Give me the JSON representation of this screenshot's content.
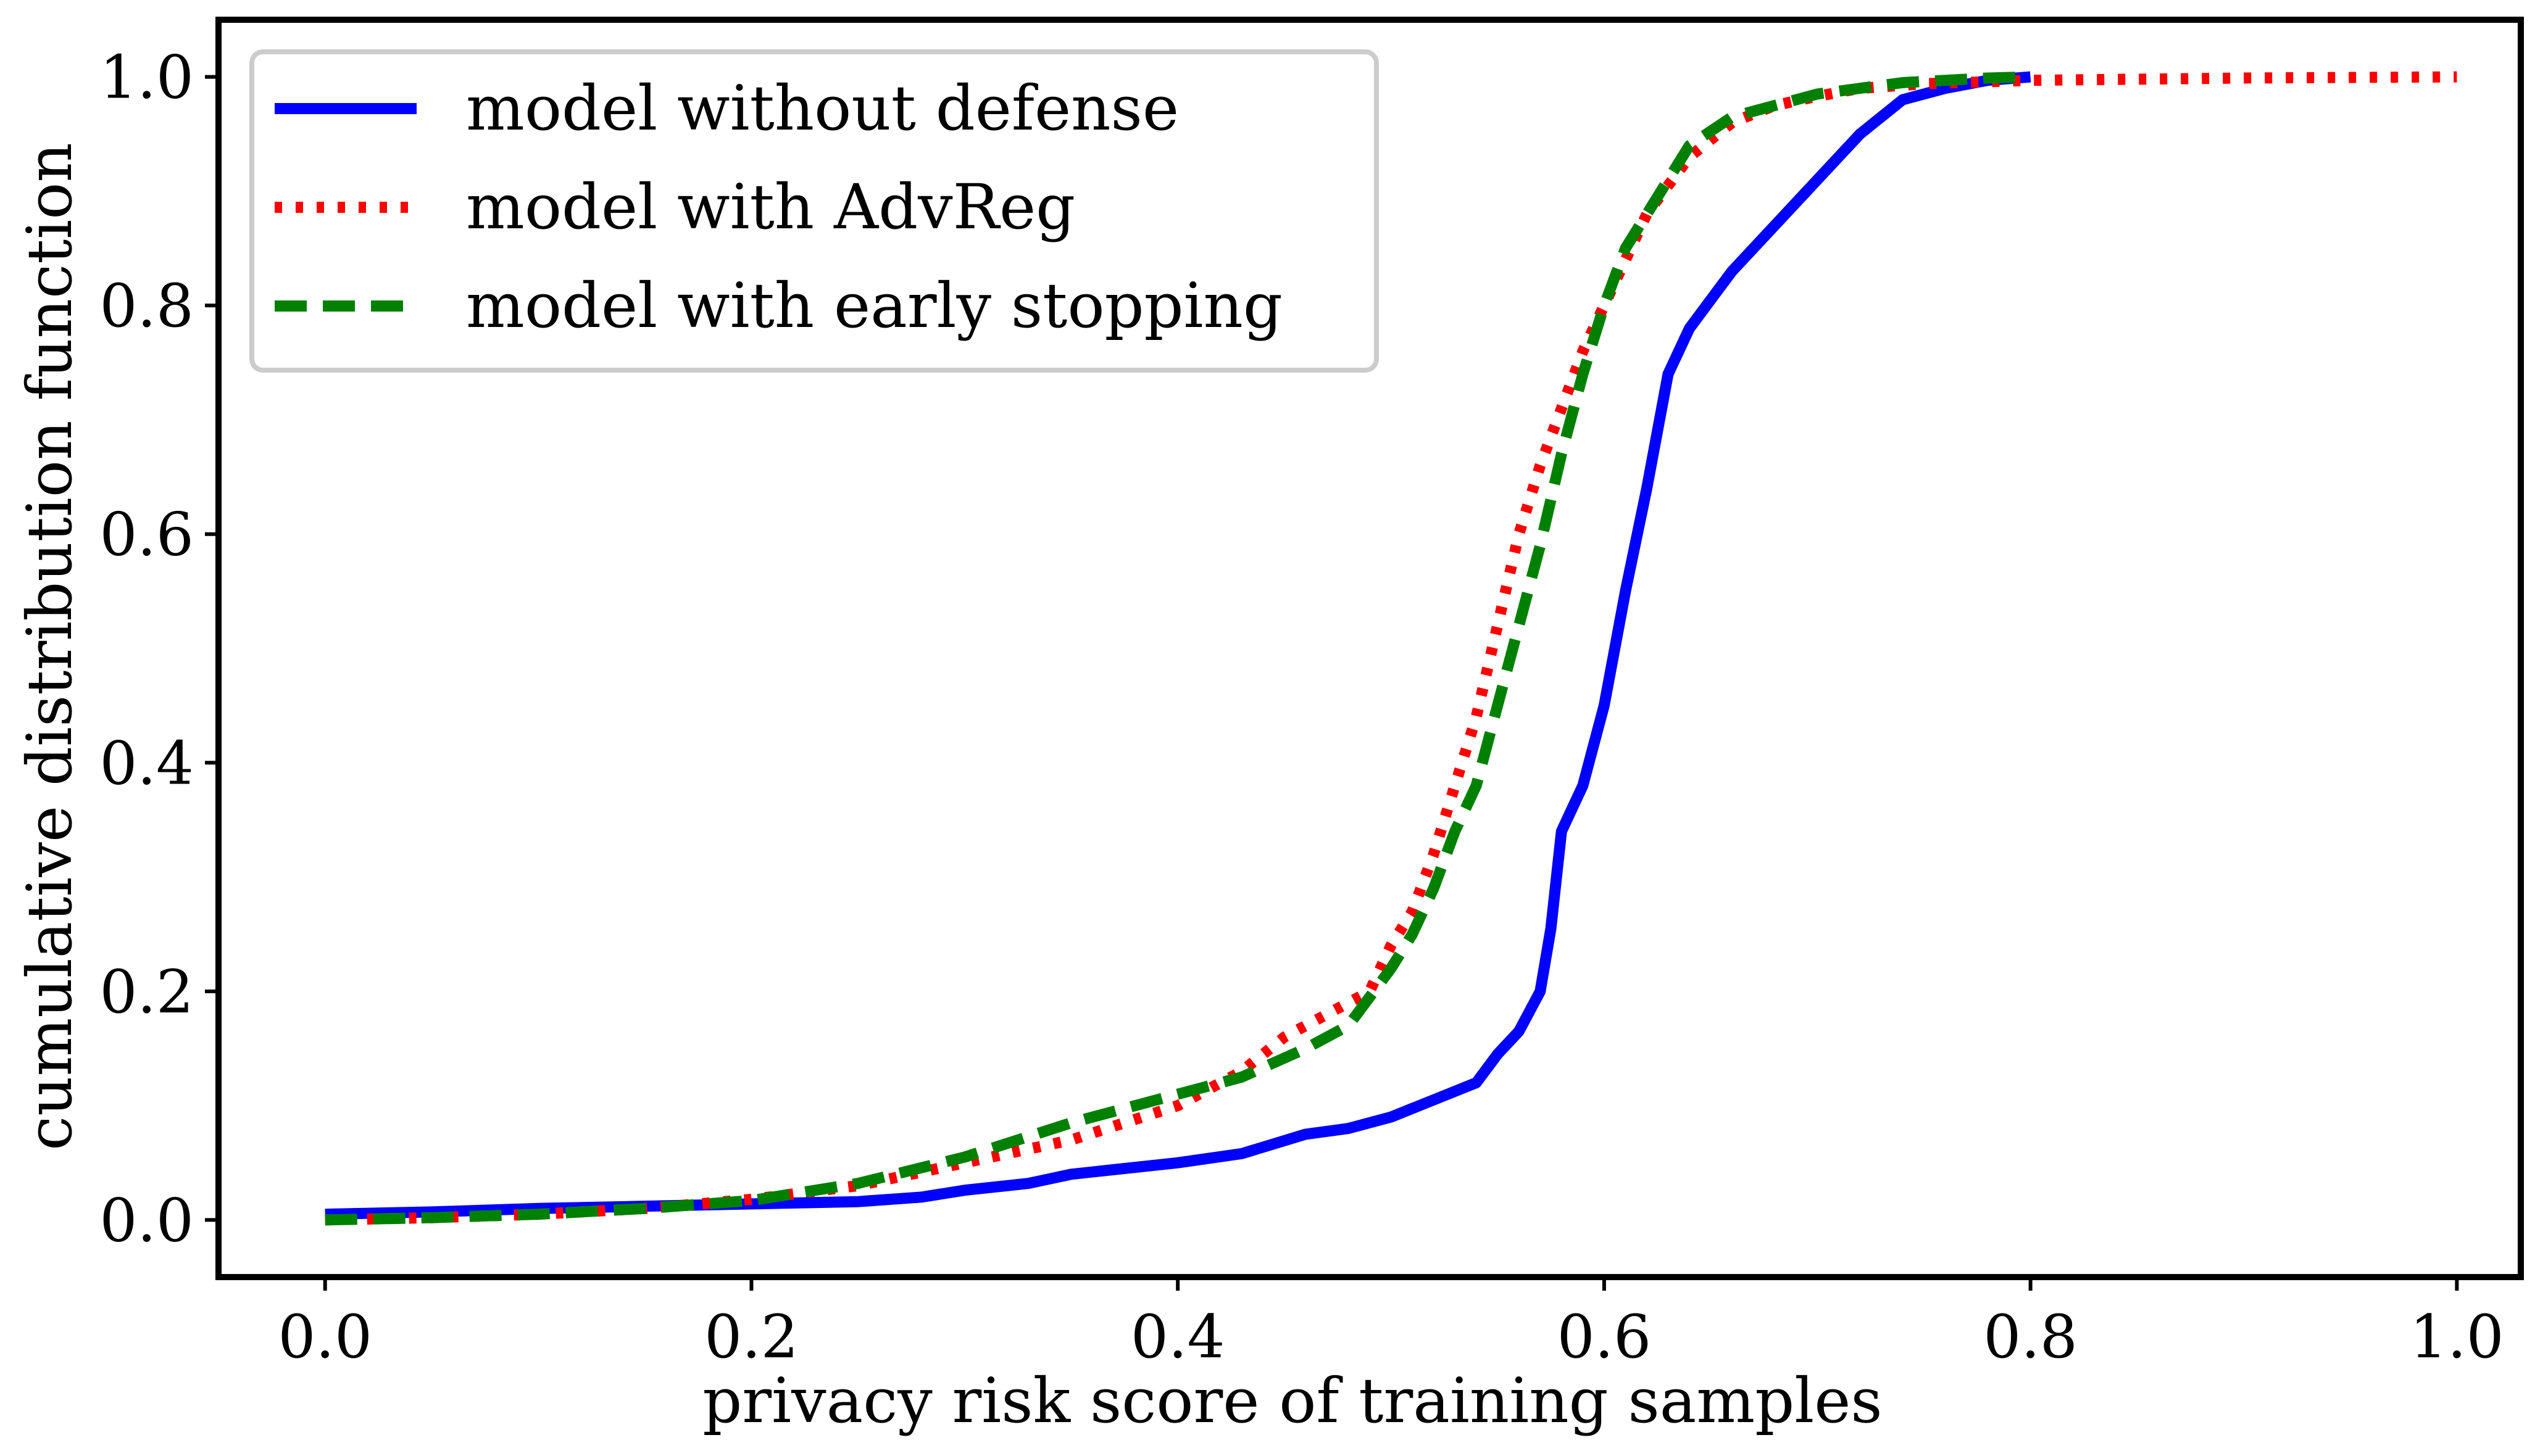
{
  "chart_data": {
    "type": "line",
    "title": "",
    "xlabel": "privacy risk score of training samples",
    "ylabel": "cumulative distribution function",
    "xlim": [
      -0.05,
      1.03
    ],
    "ylim": [
      -0.05,
      1.05
    ],
    "xticks": [
      0.0,
      0.2,
      0.4,
      0.6,
      0.8,
      1.0
    ],
    "yticks": [
      0.0,
      0.2,
      0.4,
      0.6,
      0.8,
      1.0
    ],
    "tick_labels_x": [
      "0.0",
      "0.2",
      "0.4",
      "0.6",
      "0.8",
      "1.0"
    ],
    "tick_labels_y": [
      "0.0",
      "0.2",
      "0.4",
      "0.6",
      "0.8",
      "1.0"
    ],
    "grid": false,
    "legend_position": "upper-left",
    "series": [
      {
        "name": "model without defense",
        "color": "#0000ff",
        "style": "solid",
        "x": [
          0.0,
          0.05,
          0.1,
          0.15,
          0.2,
          0.25,
          0.28,
          0.3,
          0.33,
          0.35,
          0.4,
          0.43,
          0.46,
          0.48,
          0.5,
          0.52,
          0.54,
          0.55,
          0.56,
          0.57,
          0.575,
          0.58,
          0.59,
          0.6,
          0.61,
          0.62,
          0.63,
          0.64,
          0.66,
          0.68,
          0.7,
          0.72,
          0.74,
          0.76,
          0.78,
          0.8
        ],
        "y": [
          0.005,
          0.007,
          0.01,
          0.012,
          0.014,
          0.016,
          0.02,
          0.026,
          0.032,
          0.04,
          0.05,
          0.058,
          0.075,
          0.08,
          0.09,
          0.105,
          0.12,
          0.145,
          0.165,
          0.2,
          0.255,
          0.34,
          0.38,
          0.45,
          0.55,
          0.64,
          0.74,
          0.78,
          0.83,
          0.87,
          0.91,
          0.95,
          0.98,
          0.99,
          0.997,
          1.0
        ]
      },
      {
        "name": "model with AdvReg",
        "color": "#ff0000",
        "style": "dotted",
        "x": [
          0.0,
          0.05,
          0.1,
          0.15,
          0.2,
          0.25,
          0.3,
          0.35,
          0.4,
          0.43,
          0.45,
          0.47,
          0.49,
          0.5,
          0.51,
          0.52,
          0.53,
          0.54,
          0.55,
          0.56,
          0.57,
          0.58,
          0.59,
          0.6,
          0.62,
          0.64,
          0.66,
          0.68,
          0.7,
          0.72,
          0.75,
          0.8,
          0.9,
          1.0
        ],
        "y": [
          0.0,
          0.002,
          0.005,
          0.01,
          0.018,
          0.03,
          0.05,
          0.07,
          0.1,
          0.13,
          0.16,
          0.18,
          0.2,
          0.24,
          0.27,
          0.32,
          0.38,
          0.44,
          0.52,
          0.6,
          0.66,
          0.71,
          0.76,
          0.8,
          0.88,
          0.93,
          0.96,
          0.975,
          0.983,
          0.99,
          0.994,
          0.997,
          0.999,
          1.0
        ]
      },
      {
        "name": "model with early stopping",
        "color": "#008000",
        "style": "dashed",
        "x": [
          0.0,
          0.05,
          0.1,
          0.15,
          0.2,
          0.25,
          0.3,
          0.35,
          0.4,
          0.43,
          0.46,
          0.48,
          0.5,
          0.51,
          0.52,
          0.53,
          0.54,
          0.55,
          0.56,
          0.57,
          0.58,
          0.59,
          0.6,
          0.61,
          0.62,
          0.64,
          0.66,
          0.68,
          0.7,
          0.74,
          0.78,
          0.8
        ],
        "y": [
          0.0,
          0.002,
          0.005,
          0.01,
          0.017,
          0.032,
          0.055,
          0.085,
          0.11,
          0.125,
          0.15,
          0.17,
          0.22,
          0.25,
          0.29,
          0.34,
          0.38,
          0.45,
          0.52,
          0.59,
          0.67,
          0.74,
          0.8,
          0.85,
          0.88,
          0.94,
          0.965,
          0.975,
          0.985,
          0.995,
          0.999,
          1.0
        ]
      }
    ]
  }
}
